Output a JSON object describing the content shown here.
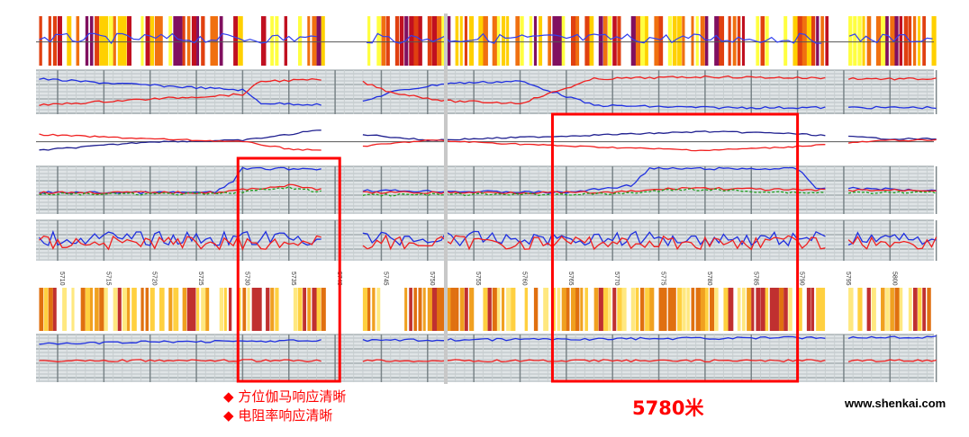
{
  "chart_data": {
    "type": "line",
    "title": "",
    "xlabel": "",
    "ylabel": "",
    "depth_axis": {
      "unit": "m",
      "range": [
        5708,
        5805
      ],
      "ticks": [
        5710,
        5715,
        5720,
        5725,
        5730,
        5735,
        5740,
        5745,
        5750,
        5755,
        5760,
        5765,
        5770,
        5775,
        5780,
        5785,
        5790,
        5795,
        5800
      ],
      "tick_labels": [
        "5710",
        "5715",
        "5720",
        "5725",
        "5730",
        "5735",
        "5740",
        "5745",
        "5750",
        "5755",
        "5760",
        "5765",
        "5770",
        "5775",
        "5780",
        "5785",
        "5790",
        "5795",
        "5800"
      ]
    },
    "data_gaps": [
      [
        5738.5,
        5743
      ],
      [
        5793,
        5795.5
      ]
    ],
    "tracks": [
      {
        "kind": "image-stripes",
        "palette": [
          "#ffff40",
          "#ffd000",
          "#f07010",
          "#e04010",
          "#c01020",
          "#801060"
        ]
      },
      {
        "kind": "curves",
        "grid": true,
        "series": [
          {
            "color": "#2030e0",
            "points": [
              [
                5708,
                0.2
              ],
              [
                5716,
                0.3
              ],
              [
                5730,
                0.45
              ],
              [
                5732,
                0.75
              ],
              [
                5742,
                0.8
              ],
              [
                5746,
                0.5
              ],
              [
                5752,
                0.3
              ],
              [
                5760,
                0.25
              ],
              [
                5768,
                0.8
              ],
              [
                5780,
                0.85
              ],
              [
                5800,
                0.85
              ]
            ]
          },
          {
            "color": "#f02020",
            "points": [
              [
                5708,
                0.8
              ],
              [
                5716,
                0.7
              ],
              [
                5730,
                0.55
              ],
              [
                5732,
                0.25
              ],
              [
                5742,
                0.2
              ],
              [
                5746,
                0.5
              ],
              [
                5752,
                0.7
              ],
              [
                5760,
                0.75
              ],
              [
                5768,
                0.2
              ],
              [
                5780,
                0.15
              ],
              [
                5800,
                0.2
              ]
            ]
          }
        ]
      },
      {
        "kind": "curves",
        "grid": false,
        "series": [
          {
            "color": "#202090",
            "points": [
              [
                5708,
                0.85
              ],
              [
                5720,
                0.55
              ],
              [
                5730,
                0.5
              ],
              [
                5735,
                0.3
              ],
              [
                5738,
                0.15
              ],
              [
                5750,
                0.5
              ],
              [
                5765,
                0.35
              ],
              [
                5780,
                0.2
              ],
              [
                5788,
                0.25
              ],
              [
                5800,
                0.45
              ]
            ]
          },
          {
            "color": "#f02020",
            "points": [
              [
                5708,
                0.3
              ],
              [
                5720,
                0.45
              ],
              [
                5730,
                0.55
              ],
              [
                5735,
                0.8
              ],
              [
                5738,
                0.85
              ],
              [
                5750,
                0.5
              ],
              [
                5765,
                0.7
              ],
              [
                5780,
                0.85
              ],
              [
                5788,
                0.75
              ],
              [
                5800,
                0.5
              ]
            ]
          }
        ]
      },
      {
        "kind": "curves",
        "grid": true,
        "series": [
          {
            "color": "#2030e0",
            "points": [
              [
                5708,
                0.55
              ],
              [
                5727,
                0.55
              ],
              [
                5729,
                0.3
              ],
              [
                5730,
                0.05
              ],
              [
                5739,
                0.05
              ],
              [
                5741,
                0.5
              ],
              [
                5765,
                0.55
              ],
              [
                5772,
                0.4
              ],
              [
                5774,
                0.05
              ],
              [
                5790,
                0.05
              ],
              [
                5792,
                0.45
              ],
              [
                5805,
                0.5
              ]
            ]
          },
          {
            "color": "#f02020",
            "points": [
              [
                5708,
                0.55
              ],
              [
                5727,
                0.55
              ],
              [
                5735,
                0.4
              ],
              [
                5741,
                0.55
              ],
              [
                5770,
                0.55
              ],
              [
                5778,
                0.45
              ],
              [
                5790,
                0.5
              ],
              [
                5805,
                0.5
              ]
            ]
          },
          {
            "color": "#20a020",
            "dash": true,
            "points": [
              [
                5708,
                0.58
              ],
              [
                5727,
                0.58
              ],
              [
                5735,
                0.45
              ],
              [
                5741,
                0.6
              ],
              [
                5770,
                0.58
              ],
              [
                5778,
                0.48
              ],
              [
                5790,
                0.55
              ],
              [
                5805,
                0.55
              ]
            ]
          }
        ]
      },
      {
        "kind": "curves-noisy",
        "grid": true,
        "series": [
          {
            "color": "#2030e0",
            "base": 0.45
          },
          {
            "color": "#f02020",
            "base": 0.55
          }
        ]
      },
      {
        "kind": "image-stripes",
        "palette": [
          "#ffd040",
          "#f0a020",
          "#e07010",
          "#ffe880",
          "#c03030"
        ]
      },
      {
        "kind": "curves",
        "grid": true,
        "series": [
          {
            "color": "#2030e0",
            "points": [
              [
                5708,
                0.2
              ],
              [
                5722,
                0.15
              ],
              [
                5805,
                0.05
              ]
            ]
          },
          {
            "color": "#f02020",
            "points": [
              [
                5708,
                0.55
              ],
              [
                5805,
                0.55
              ]
            ]
          }
        ]
      }
    ],
    "annotations": {
      "items": [
        "方位伽马响应清晰",
        "电阻率响应清晰"
      ],
      "bullet": "◆",
      "highlight_depth": "5780米",
      "highlight_color": "#ff0000",
      "highlight_boxes": [
        [
          5729.5,
          5740.5
        ],
        [
          5763.5,
          5790
        ]
      ]
    }
  },
  "watermark": "www.shenkai.com"
}
